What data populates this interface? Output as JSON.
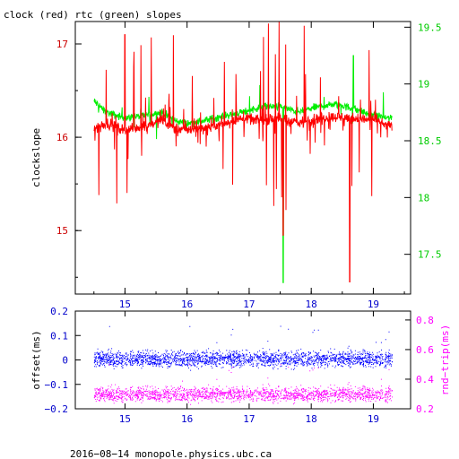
{
  "chart_data": [
    {
      "type": "line",
      "title": "clock (red) rtc (green) slopes",
      "ylabel": "clockslope",
      "xlim": [
        14.2,
        19.6
      ],
      "ylim": [
        14.32,
        17.24
      ],
      "y2lim": [
        17.15,
        19.55
      ],
      "x_ticks": [
        15,
        16,
        17,
        18,
        19
      ],
      "y_ticks": [
        15,
        16,
        17
      ],
      "y2_ticks": [
        17.5,
        18,
        18.5,
        19,
        19.5
      ],
      "colors": {
        "clock": "#ff0000",
        "rtc": "#00ee00",
        "ticks_left": "#cc0000",
        "ticks_right": "#00cc00",
        "ticks_x": "#0000cc",
        "axes": "#000000"
      },
      "series": [
        {
          "axis": "left",
          "x": [
            14.5,
            14.7,
            15.0,
            15.3,
            15.6,
            15.8,
            16.0,
            16.3,
            16.6,
            16.9,
            17.2,
            17.5,
            17.8,
            18.1,
            18.4,
            18.7,
            19.0,
            19.3
          ],
          "values": [
            16.1,
            16.15,
            16.08,
            16.12,
            16.18,
            16.1,
            16.08,
            16.1,
            16.15,
            16.2,
            16.18,
            16.2,
            16.15,
            16.2,
            16.22,
            16.2,
            16.18,
            16.12
          ]
        },
        {
          "axis": "right",
          "x": [
            14.5,
            14.7,
            15.0,
            15.3,
            15.6,
            15.8,
            16.0,
            16.3,
            16.6,
            16.9,
            17.2,
            17.5,
            17.8,
            18.1,
            18.4,
            18.7,
            19.0,
            19.3
          ],
          "values": [
            18.85,
            18.75,
            18.7,
            18.72,
            18.75,
            18.68,
            18.65,
            18.68,
            18.72,
            18.75,
            18.8,
            18.8,
            18.75,
            18.8,
            18.82,
            18.78,
            18.72,
            18.7
          ]
        }
      ]
    },
    {
      "type": "scatter",
      "ylabel": "offset(ms)",
      "y2label": "rnd−trip(ms)",
      "xlim": [
        14.2,
        19.6
      ],
      "ylim": [
        -0.2,
        0.2
      ],
      "y2lim": [
        0.2,
        0.86
      ],
      "x_ticks": [
        15,
        16,
        17,
        18,
        19
      ],
      "y_ticks": [
        -0.2,
        -0.1,
        0,
        0.1,
        0.2
      ],
      "y_tick_labels": [
        "−0.2",
        "−0.1",
        "0",
        "0.1",
        "0.2"
      ],
      "y2_ticks": [
        0.2,
        0.4,
        0.6,
        0.8
      ],
      "colors": {
        "offset": "#0000ff",
        "rtt": "#ff00ff",
        "ticks_left": "#0000cc",
        "ticks_right": "#ff00ff",
        "ticks_x": "#0000cc"
      },
      "series": [
        {
          "axis": "left",
          "x_range": [
            14.5,
            19.3
          ],
          "center": 0.0,
          "band": [
            -0.035,
            0.045
          ]
        },
        {
          "axis": "right",
          "x_range": [
            14.5,
            19.3
          ],
          "center": 0.3,
          "band": [
            0.24,
            0.36
          ]
        }
      ]
    }
  ],
  "footer": "2016−08−14 monopole.physics.ubc.ca"
}
